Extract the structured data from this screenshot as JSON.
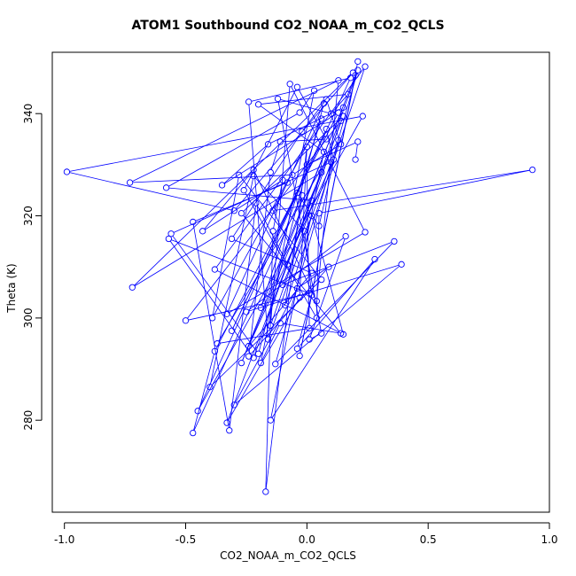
{
  "chart_data": {
    "type": "scatter",
    "title": "ATOM1 Southbound CO2_NOAA_m_CO2_QCLS",
    "xlabel": "CO2_NOAA_m_CO2_QCLS",
    "ylabel": "Theta (K)",
    "xlim": [
      -1.05,
      1.0
    ],
    "ylim": [
      262,
      352
    ],
    "xticks": [
      -1.0,
      -0.5,
      0.0,
      0.5,
      1.0
    ],
    "xtick_labels": [
      "-1.0",
      "-0.5",
      "0.0",
      "0.5",
      "1.0"
    ],
    "yticks": [
      280,
      300,
      320,
      340
    ],
    "ytick_labels": [
      "280",
      "300",
      "320",
      "340"
    ],
    "series_color": "#0000ff",
    "connected": true,
    "points": [
      [
        0.21,
        350.2
      ],
      [
        -0.03,
        292.6
      ],
      [
        0.2,
        347.5
      ],
      [
        -0.27,
        291.2
      ],
      [
        0.06,
        328.5
      ],
      [
        -0.72,
        306.0
      ],
      [
        0.19,
        348.0
      ],
      [
        -0.3,
        321.0
      ],
      [
        -0.99,
        328.6
      ],
      [
        0.23,
        339.5
      ],
      [
        -0.45,
        281.8
      ],
      [
        0.18,
        347.0
      ],
      [
        -0.24,
        342.3
      ],
      [
        -0.16,
        295.8
      ],
      [
        0.1,
        330.5
      ],
      [
        -0.56,
        316.5
      ],
      [
        -0.2,
        293.0
      ],
      [
        0.07,
        342.0
      ],
      [
        -0.33,
        300.8
      ],
      [
        0.24,
        316.8
      ],
      [
        -0.07,
        345.8
      ],
      [
        -0.15,
        298.5
      ],
      [
        0.14,
        338.6
      ],
      [
        -0.5,
        299.5
      ],
      [
        0.01,
        304.8
      ],
      [
        -0.57,
        315.5
      ],
      [
        -0.22,
        292.2
      ],
      [
        0.21,
        348.5
      ],
      [
        -0.13,
        291.0
      ],
      [
        0.36,
        315.0
      ],
      [
        -0.1,
        306.5
      ],
      [
        0.02,
        320.0
      ],
      [
        0.15,
        296.8
      ],
      [
        -0.38,
        309.5
      ],
      [
        0.24,
        349.2
      ],
      [
        -0.09,
        302.5
      ],
      [
        -0.02,
        324.0
      ],
      [
        -0.47,
        277.5
      ],
      [
        -0.38,
        293.5
      ],
      [
        0.13,
        340.2
      ],
      [
        -0.35,
        326.0
      ],
      [
        -0.16,
        334.0
      ],
      [
        0.15,
        341.2
      ],
      [
        -0.19,
        302.0
      ],
      [
        0.06,
        339.0
      ],
      [
        -0.39,
        300.0
      ],
      [
        -0.28,
        328.0
      ],
      [
        0.06,
        307.5
      ],
      [
        -0.4,
        286.5
      ],
      [
        -0.22,
        327.8
      ],
      [
        -0.01,
        317.0
      ],
      [
        0.02,
        304.5
      ],
      [
        -0.04,
        294.0
      ],
      [
        0.28,
        311.5
      ],
      [
        -0.15,
        280.0
      ],
      [
        0.07,
        332.5
      ],
      [
        -0.2,
        341.8
      ],
      [
        0.17,
        343.8
      ],
      [
        0.1,
        340.0
      ],
      [
        -0.12,
        342.9
      ],
      [
        0.06,
        297.0
      ],
      [
        0.01,
        295.8
      ],
      [
        0.16,
        316.0
      ],
      [
        -0.25,
        301.2
      ],
      [
        0.39,
        310.5
      ],
      [
        -0.3,
        283.0
      ],
      [
        -0.04,
        305.8
      ],
      [
        0.09,
        310.0
      ],
      [
        -0.24,
        292.5
      ],
      [
        -0.15,
        328.5
      ],
      [
        -0.11,
        334.5
      ],
      [
        0.08,
        335.0
      ],
      [
        -0.04,
        345.2
      ],
      [
        -0.26,
        325.0
      ],
      [
        0.04,
        300.0
      ],
      [
        0.05,
        320.5
      ],
      [
        0.93,
        329.0
      ],
      [
        -0.14,
        321.0
      ],
      [
        -0.08,
        326.5
      ],
      [
        -0.47,
        318.8
      ],
      [
        -0.32,
        278.0
      ],
      [
        -0.21,
        322.5
      ],
      [
        -0.08,
        310.5
      ],
      [
        0.02,
        323.0
      ],
      [
        -0.58,
        325.5
      ],
      [
        -0.03,
        340.2
      ],
      [
        0.03,
        344.5
      ],
      [
        -0.19,
        291.2
      ],
      [
        -0.11,
        299.0
      ],
      [
        0.14,
        297.0
      ],
      [
        -0.27,
        320.5
      ],
      [
        0.15,
        339.5
      ],
      [
        -0.33,
        279.5
      ],
      [
        -0.03,
        304.0
      ],
      [
        0.0,
        333.5
      ],
      [
        -0.17,
        266.0
      ],
      [
        -0.14,
        317.0
      ],
      [
        -0.1,
        327.0
      ],
      [
        -0.43,
        317.0
      ],
      [
        -0.22,
        329.0
      ],
      [
        0.04,
        303.3
      ],
      [
        0.13,
        346.5
      ],
      [
        -0.73,
        326.5
      ],
      [
        -0.06,
        328.0
      ],
      [
        0.14,
        334.0
      ],
      [
        0.08,
        342.8
      ],
      [
        -0.02,
        336.5
      ],
      [
        -0.31,
        315.5
      ],
      [
        0.02,
        308.8
      ],
      [
        -0.24,
        294.5
      ],
      [
        0.11,
        331.0
      ],
      [
        0.08,
        337.0
      ],
      [
        -0.31,
        297.5
      ],
      [
        -0.04,
        324.5
      ],
      [
        0.05,
        318.0
      ],
      [
        0.13,
        334.8
      ],
      [
        -0.37,
        295.0
      ],
      [
        0.01,
        298.0
      ],
      [
        0.0,
        330.0
      ],
      [
        0.21,
        334.5
      ],
      [
        0.2,
        331.0
      ]
    ]
  }
}
